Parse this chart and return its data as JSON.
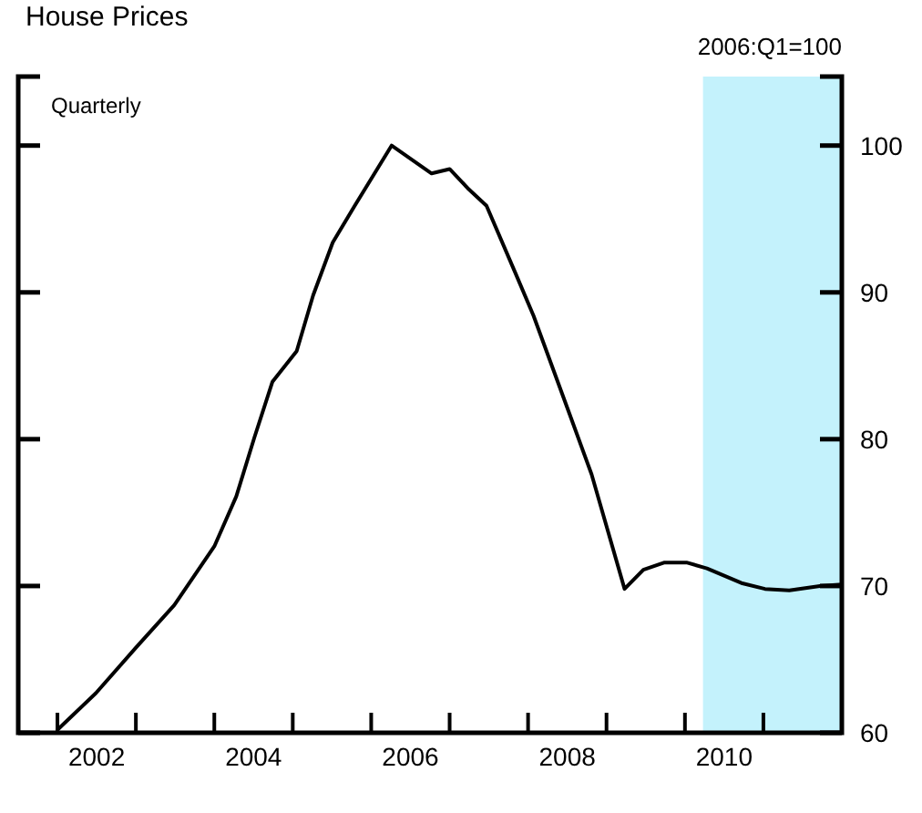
{
  "chart_data": {
    "type": "line",
    "title": "House Prices",
    "subtitle": "2006:Q1=100",
    "annotations": [
      "Quarterly"
    ],
    "x": [
      2002.0,
      2002.49,
      2003.0,
      2003.49,
      2004.0,
      2004.28,
      2004.51,
      2004.74,
      2005.05,
      2005.26,
      2005.51,
      2005.79,
      2006.26,
      2006.77,
      2007.0,
      2007.23,
      2007.47,
      2007.84,
      2008.07,
      2008.53,
      2008.81,
      2009.23,
      2009.47,
      2009.74,
      2010.02,
      2010.28,
      2010.72,
      2011.02,
      2011.33,
      2011.72,
      2012.0
    ],
    "series": [
      {
        "color": "#000000",
        "values": [
          60.2,
          62.7,
          65.8,
          68.7,
          72.7,
          76.1,
          80.1,
          83.9,
          86,
          89.8,
          93.4,
          95.9,
          100,
          98.1,
          98.4,
          97.1,
          95.9,
          91.3,
          88.4,
          81.7,
          77.6,
          69.8,
          71.1,
          71.6,
          71.6,
          71.2,
          70.2,
          69.8,
          69.7,
          70,
          70.1
        ]
      }
    ],
    "xlim": [
      2001.5,
      2012.0
    ],
    "xticks": [
      {
        "value": 2002,
        "label": null
      },
      {
        "value": 2002.5,
        "label": "2002"
      },
      {
        "value": 2003,
        "label": null
      },
      {
        "value": 2004,
        "label": null
      },
      {
        "value": 2004.5,
        "label": "2004"
      },
      {
        "value": 2005,
        "label": null
      },
      {
        "value": 2006,
        "label": null
      },
      {
        "value": 2006.5,
        "label": "2006"
      },
      {
        "value": 2007,
        "label": null
      },
      {
        "value": 2008,
        "label": null
      },
      {
        "value": 2008.5,
        "label": "2008"
      },
      {
        "value": 2009,
        "label": null
      },
      {
        "value": 2010,
        "label": null
      },
      {
        "value": 2010.5,
        "label": "2010"
      },
      {
        "value": 2011,
        "label": null
      }
    ],
    "ylim": [
      60,
      104.7
    ],
    "yticks": [
      60,
      70,
      80,
      90,
      100
    ],
    "bands": [
      {
        "axis": "x",
        "from": 2010.23,
        "to": 2012.0,
        "color": "#c4f2fc"
      }
    ],
    "grid": false,
    "line_style": "solid",
    "marker": "none"
  }
}
